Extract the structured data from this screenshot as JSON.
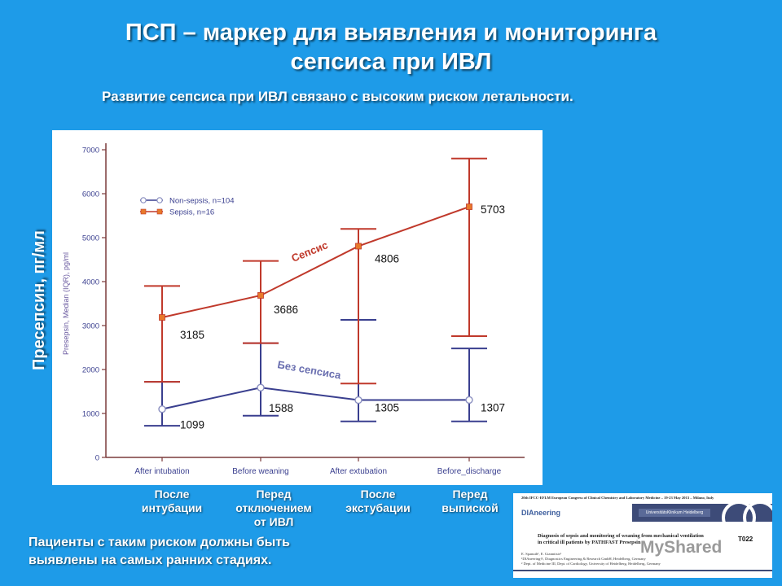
{
  "slide": {
    "title_line1": "ПСП – маркер для выявления и мониторинга",
    "title_line2": "сепсиса при ИВЛ",
    "subtitle": "Развитие сепсиса при ИВЛ связано с высоким риском летальности.",
    "y_axis_title": "Пресепсин, пг/мл",
    "ru_labels": [
      {
        "line1": "После",
        "line2": "интубации",
        "line3": ""
      },
      {
        "line1": "Перед",
        "line2": "отключением",
        "line3": "от ИВЛ"
      },
      {
        "line1": "После",
        "line2": "экстубации",
        "line3": ""
      },
      {
        "line1": "Перед",
        "line2": "выпиской",
        "line3": ""
      }
    ],
    "note_line1": "Пациенты с таким риском должны быть",
    "note_line2": "выявлены на самых ранних стадиях.",
    "colors": {
      "background": "#1e9be8",
      "sepsis": "#c0392b",
      "non_sepsis": "#3a3f8f"
    }
  },
  "poster": {
    "header": "20th IFCC-EFLM European Congress of Clinical Chemistry and Laboratory Medicine – 19-23 May 2013 – Milano, Italy",
    "logo_left": "DIAneering",
    "logo_right": "UniversitätsKlinikum Heidelberg",
    "title_line1": "Diagnosis of sepsis and monitoring of weaning from mechanical ventilation",
    "title_line2": "in critical ill patients by PATHFAST Presepsin",
    "code": "T022",
    "authors_line1": "E. Spanuth¹, E. Giannitsis²",
    "authors_line2": "¹DIAneering®, Diagnostics Engineering & Research GmbH, Heidelberg, Germany",
    "authors_line3": "² Dept. of Medicine III, Dept. of Cardiology, University of Heidelberg, Heidelberg, Germany"
  },
  "watermark": "MyShared",
  "chart_data": {
    "type": "line",
    "title": "",
    "xlabel": "",
    "ylabel": "Presepsin, Median (IQR), pg/ml",
    "categories": [
      "After intubation",
      "Before weaning",
      "After extubation",
      "Before_discharge"
    ],
    "ylim": [
      0,
      7000
    ],
    "yticks": [
      0,
      1000,
      2000,
      3000,
      4000,
      5000,
      6000,
      7000
    ],
    "legend_position": "top-left",
    "series": [
      {
        "name": "Non-sepsis, n=104",
        "values": [
          1099,
          1588,
          1305,
          1307
        ],
        "iqr_low": [
          720,
          950,
          820,
          820
        ],
        "iqr_high": [
          1720,
          2600,
          3130,
          2480
        ],
        "color": "#3a3f8f",
        "marker": "open-circle"
      },
      {
        "name": "Sepsis, n=16",
        "values": [
          3185,
          3686,
          4806,
          5703
        ],
        "iqr_low": [
          1720,
          2600,
          1680,
          2760
        ],
        "iqr_high": [
          3900,
          4470,
          5200,
          6800
        ],
        "color": "#c0392b",
        "marker": "square"
      }
    ],
    "annotations": {
      "sepsis_label": "Сепсис",
      "non_sepsis_label": "Без сепсиса"
    }
  }
}
